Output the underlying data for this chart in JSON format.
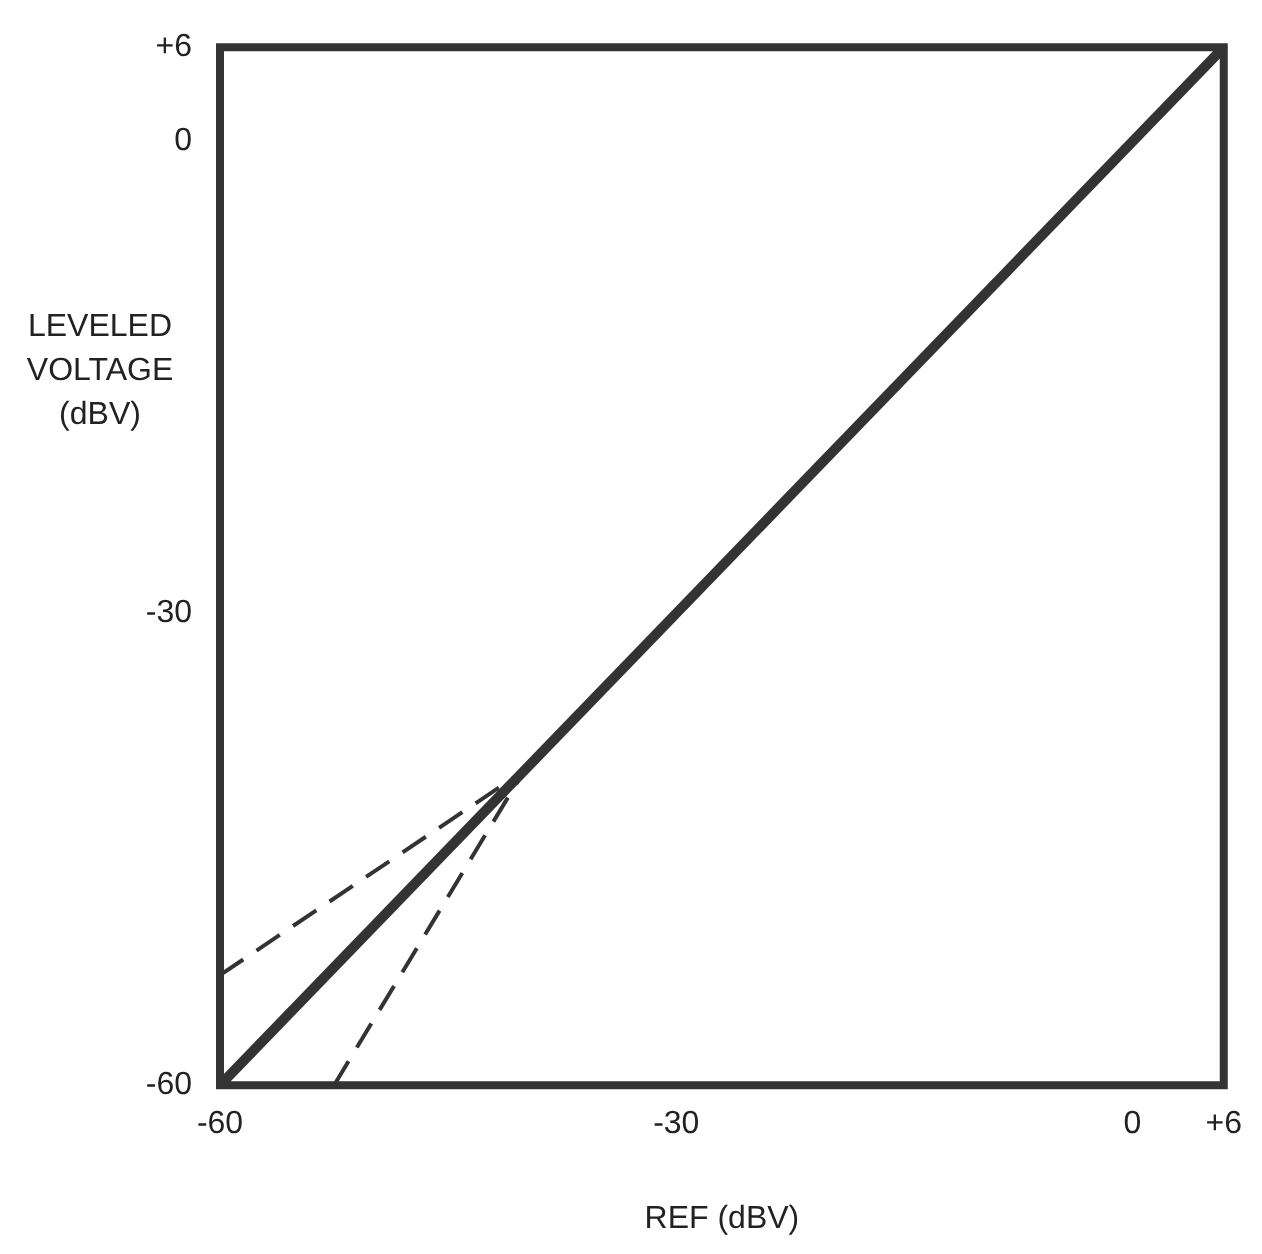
{
  "chart_data": {
    "type": "line",
    "xlabel": "REF (dBV)",
    "ylabel": "LEVELED VOLTAGE (dBV)",
    "xlim": [
      -60,
      6
    ],
    "ylim": [
      -60,
      6
    ],
    "xticks": [
      -60,
      -30,
      0,
      {
        "value": 6,
        "label": "+6"
      }
    ],
    "yticks": [
      -60,
      -30,
      0,
      {
        "value": 6,
        "label": "+6"
      }
    ],
    "grid": false,
    "legend": false,
    "marker": "none",
    "series": [
      {
        "color": "#333333",
        "x": [
          -60,
          6
        ],
        "values": [
          -60,
          6
        ],
        "line_style": "solid"
      },
      {
        "color": "#333333",
        "x": [
          -60,
          -40
        ],
        "values": [
          -53,
          -40
        ],
        "line_style": "dashed"
      },
      {
        "color": "#333333",
        "x": [
          -52.5,
          -40
        ],
        "values": [
          -60,
          -40
        ],
        "line_style": "dashed"
      }
    ]
  }
}
